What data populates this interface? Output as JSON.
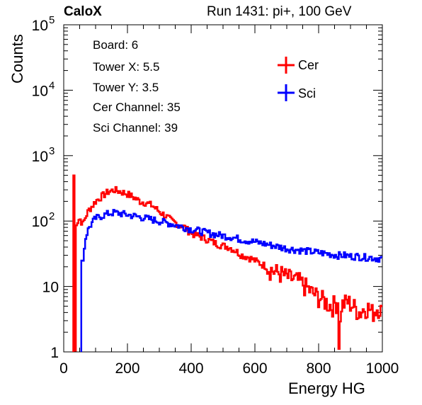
{
  "header": {
    "experiment": "CaloX",
    "run_info": "Run 1431: pi+, 100 GeV"
  },
  "info_box": {
    "lines": [
      "Board: 6",
      "Tower X: 5.5",
      "Tower Y: 3.5",
      "Cer Channel: 35",
      "Sci Channel: 39"
    ]
  },
  "chart_data": {
    "type": "line",
    "xlabel": "Energy HG",
    "ylabel": "Counts",
    "xlim": [
      0,
      1000
    ],
    "ylim": [
      1,
      100000
    ],
    "yscale": "log",
    "x_ticks": [
      0,
      200,
      400,
      600,
      800,
      1000
    ],
    "x_tick_labels": [
      "0",
      "200",
      "400",
      "600",
      "800",
      "1000"
    ],
    "y_ticks": [
      1,
      10,
      100,
      1000,
      10000,
      100000
    ],
    "y_tick_labels": [
      "1",
      "10",
      "10^2",
      "10^3",
      "10^4",
      "10^5"
    ],
    "grid": false,
    "legend_position": "top-right",
    "series": [
      {
        "name": "Cer",
        "color": "#ff0000",
        "points": [
          [
            30,
            1
          ],
          [
            32,
            500
          ],
          [
            34,
            30
          ],
          [
            36,
            1
          ],
          [
            38,
            80
          ],
          [
            40,
            95
          ],
          [
            45,
            100
          ],
          [
            50,
            110
          ],
          [
            55,
            100
          ],
          [
            60,
            90
          ],
          [
            70,
            120
          ],
          [
            80,
            150
          ],
          [
            90,
            170
          ],
          [
            100,
            200
          ],
          [
            120,
            240
          ],
          [
            140,
            280
          ],
          [
            160,
            300
          ],
          [
            180,
            280
          ],
          [
            200,
            260
          ],
          [
            220,
            230
          ],
          [
            240,
            200
          ],
          [
            260,
            190
          ],
          [
            280,
            170
          ],
          [
            300,
            140
          ],
          [
            320,
            120
          ],
          [
            340,
            100
          ],
          [
            360,
            90
          ],
          [
            380,
            80
          ],
          [
            400,
            65
          ],
          [
            420,
            60
          ],
          [
            440,
            55
          ],
          [
            460,
            50
          ],
          [
            480,
            45
          ],
          [
            500,
            42
          ],
          [
            520,
            40
          ],
          [
            540,
            35
          ],
          [
            560,
            30
          ],
          [
            580,
            28
          ],
          [
            600,
            25
          ],
          [
            620,
            22
          ],
          [
            640,
            20
          ],
          [
            660,
            17
          ],
          [
            680,
            16
          ],
          [
            700,
            14
          ],
          [
            720,
            13
          ],
          [
            740,
            12
          ],
          [
            760,
            10
          ],
          [
            780,
            8
          ],
          [
            800,
            7
          ],
          [
            820,
            6
          ],
          [
            840,
            5
          ],
          [
            860,
            6
          ],
          [
            865,
            1
          ],
          [
            870,
            5
          ],
          [
            890,
            6
          ],
          [
            910,
            5
          ],
          [
            930,
            4
          ],
          [
            950,
            5
          ],
          [
            970,
            4
          ],
          [
            990,
            5
          ],
          [
            1000,
            4
          ]
        ]
      },
      {
        "name": "Sci",
        "color": "#0000ff",
        "points": [
          [
            55,
            1
          ],
          [
            58,
            150
          ],
          [
            60,
            20
          ],
          [
            62,
            30
          ],
          [
            65,
            40
          ],
          [
            70,
            60
          ],
          [
            80,
            80
          ],
          [
            90,
            95
          ],
          [
            100,
            110
          ],
          [
            120,
            120
          ],
          [
            140,
            130
          ],
          [
            160,
            135
          ],
          [
            180,
            130
          ],
          [
            200,
            125
          ],
          [
            220,
            120
          ],
          [
            240,
            115
          ],
          [
            260,
            110
          ],
          [
            280,
            105
          ],
          [
            300,
            100
          ],
          [
            320,
            95
          ],
          [
            340,
            90
          ],
          [
            360,
            85
          ],
          [
            380,
            80
          ],
          [
            400,
            75
          ],
          [
            420,
            72
          ],
          [
            440,
            68
          ],
          [
            460,
            65
          ],
          [
            480,
            62
          ],
          [
            500,
            60
          ],
          [
            520,
            58
          ],
          [
            540,
            55
          ],
          [
            560,
            52
          ],
          [
            580,
            50
          ],
          [
            600,
            48
          ],
          [
            620,
            46
          ],
          [
            640,
            44
          ],
          [
            660,
            42
          ],
          [
            680,
            40
          ],
          [
            700,
            38
          ],
          [
            720,
            37
          ],
          [
            740,
            36
          ],
          [
            760,
            35
          ],
          [
            780,
            34
          ],
          [
            800,
            33
          ],
          [
            820,
            32
          ],
          [
            840,
            31
          ],
          [
            860,
            30
          ],
          [
            880,
            30
          ],
          [
            900,
            29
          ],
          [
            920,
            29
          ],
          [
            940,
            28
          ],
          [
            960,
            28
          ],
          [
            980,
            27
          ],
          [
            1000,
            27
          ]
        ]
      }
    ]
  }
}
